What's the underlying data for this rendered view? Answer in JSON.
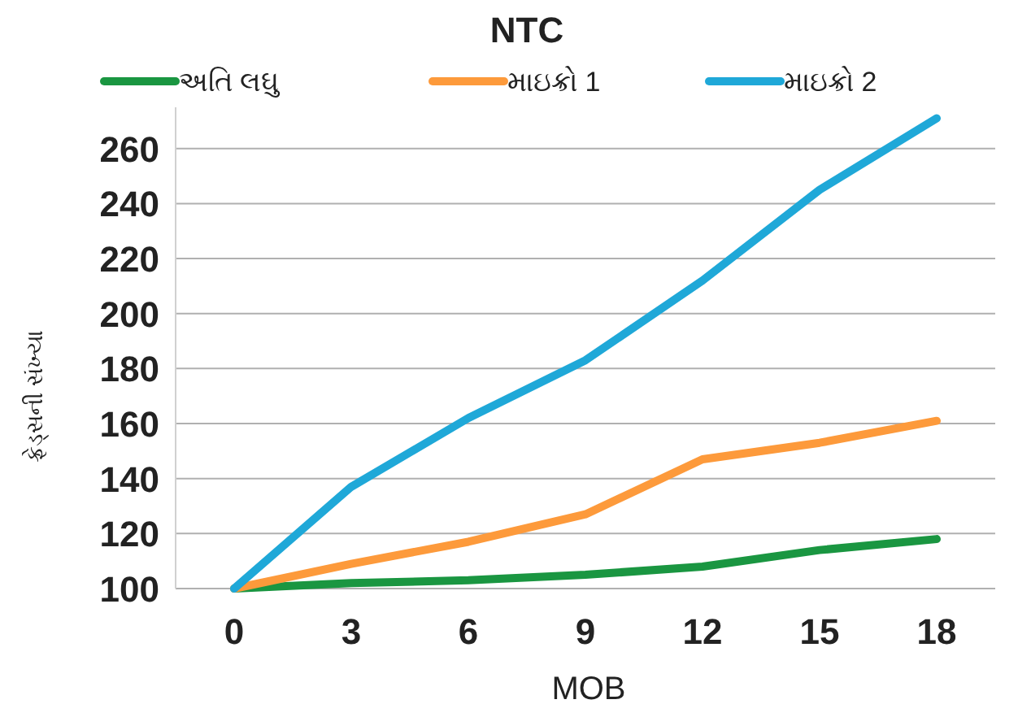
{
  "chart_data": {
    "type": "line",
    "title": "NTC",
    "xlabel": "MOB",
    "ylabel": "ફ્રેડ્સની સંખ્યા",
    "categories": [
      "0",
      "3",
      "6",
      "9",
      "12",
      "15",
      "18"
    ],
    "series": [
      {
        "name": "અતિ લઘુ",
        "color": "#1a9641",
        "values": [
          100,
          102,
          103,
          105,
          108,
          114,
          118
        ]
      },
      {
        "name": "માઇક્રો 1",
        "color": "#fd9a3b",
        "values": [
          100,
          109,
          117,
          127,
          147,
          153,
          161
        ]
      },
      {
        "name": "માઇક્રો 2",
        "color": "#1fa8d8",
        "values": [
          100,
          137,
          162,
          183,
          212,
          245,
          271
        ]
      }
    ],
    "ylim": [
      100,
      275
    ],
    "yticks": [
      100,
      120,
      140,
      160,
      180,
      200,
      220,
      240,
      260
    ],
    "grid": "y",
    "legend": "top",
    "marker": "none",
    "line_style": "solid"
  }
}
